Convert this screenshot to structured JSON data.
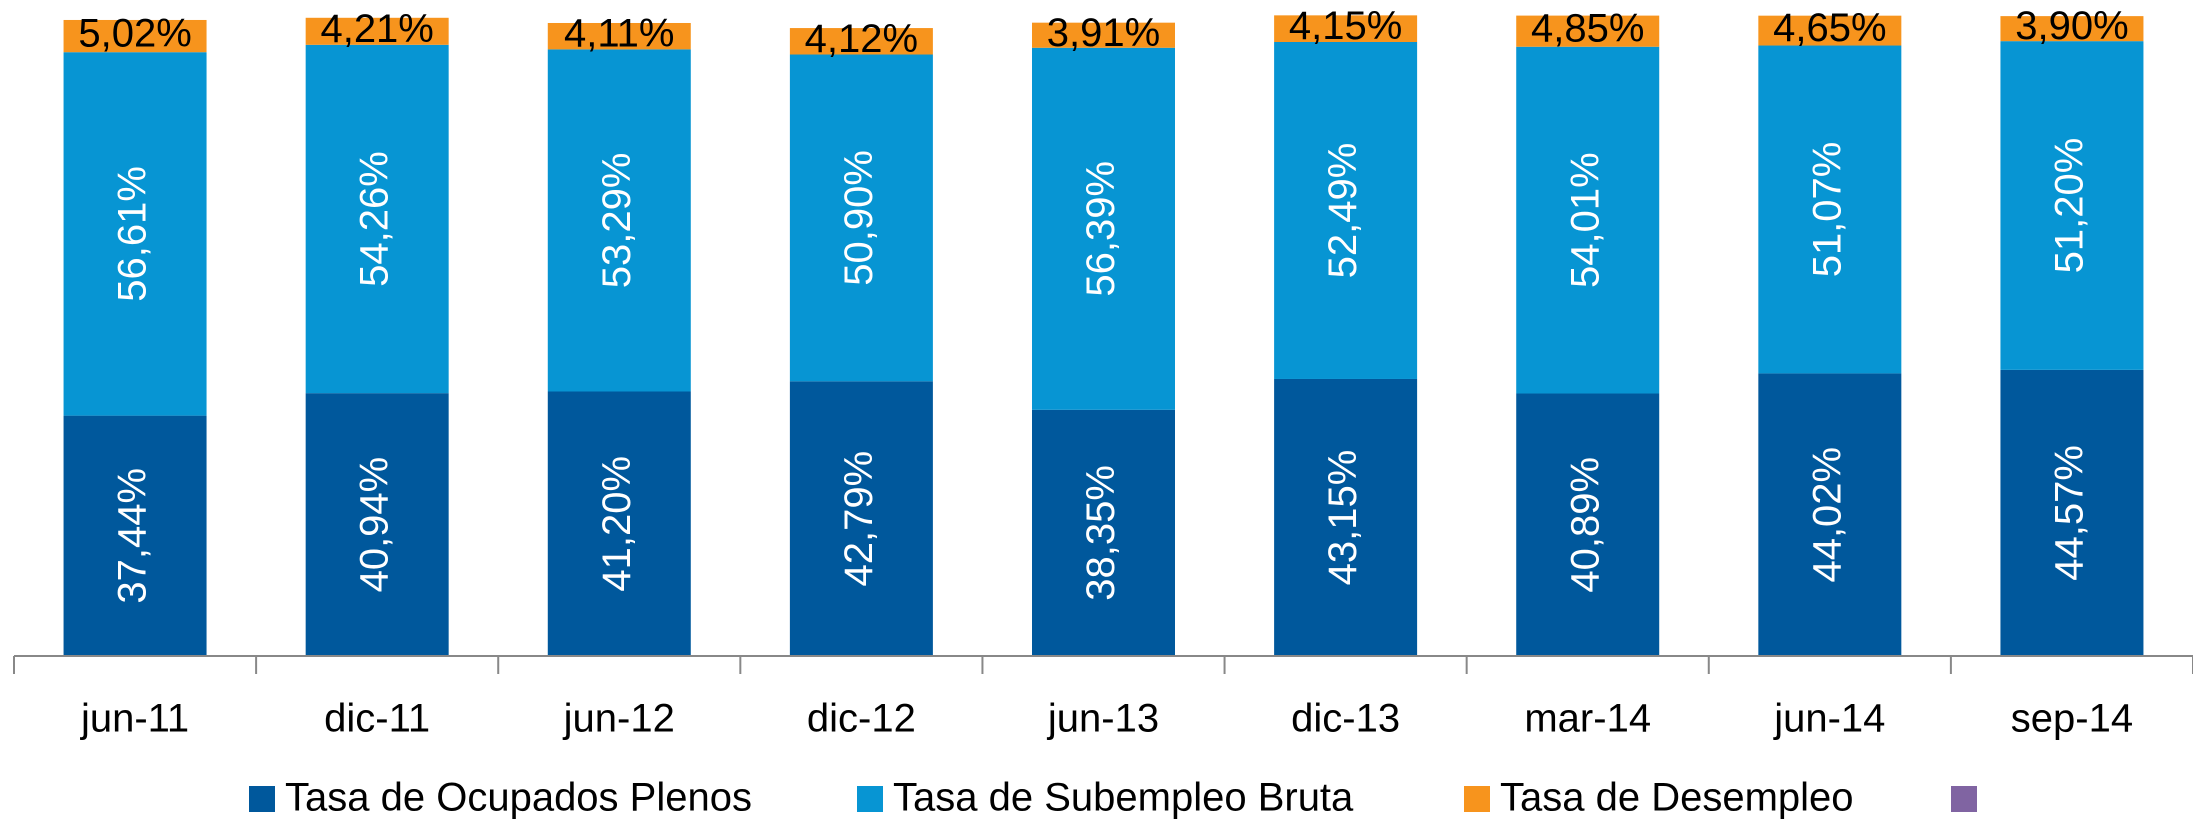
{
  "chart_data": {
    "type": "stacked_bar",
    "categories": [
      "jun-11",
      "dic-11",
      "jun-12",
      "dic-12",
      "jun-13",
      "dic-13",
      "mar-14",
      "jun-14",
      "sep-14"
    ],
    "series": [
      {
        "name": "Tasa de Ocupados Plenos",
        "color": "#00589c",
        "values": [
          37.44,
          40.94,
          41.2,
          42.79,
          38.35,
          43.15,
          40.89,
          44.02,
          44.57
        ],
        "value_labels": [
          "37,44%",
          "40,94%",
          "41,20%",
          "42,79%",
          "38,35%",
          "43,15%",
          "40,89%",
          "44,02%",
          "44,57%"
        ]
      },
      {
        "name": "Tasa de Subempleo Bruta",
        "color": "#0795d3",
        "values": [
          56.61,
          54.26,
          53.29,
          50.9,
          56.39,
          52.49,
          54.01,
          51.07,
          51.2
        ],
        "value_labels": [
          "56,61%",
          "54,26%",
          "53,29%",
          "50,90%",
          "56,39%",
          "52,49%",
          "54,01%",
          "51,07%",
          "51,20%"
        ]
      },
      {
        "name": "Tasa de Desempleo",
        "color": "#f7941d",
        "values": [
          5.02,
          4.21,
          4.11,
          4.12,
          3.91,
          4.15,
          4.85,
          4.65,
          3.9
        ],
        "value_labels": [
          "5,02%",
          "4,21%",
          "4,11%",
          "4,12%",
          "3,91%",
          "4,15%",
          "4,85%",
          "4,65%",
          "3,90%"
        ]
      }
    ],
    "ylim": [
      0,
      100
    ],
    "legend": "bottom"
  }
}
